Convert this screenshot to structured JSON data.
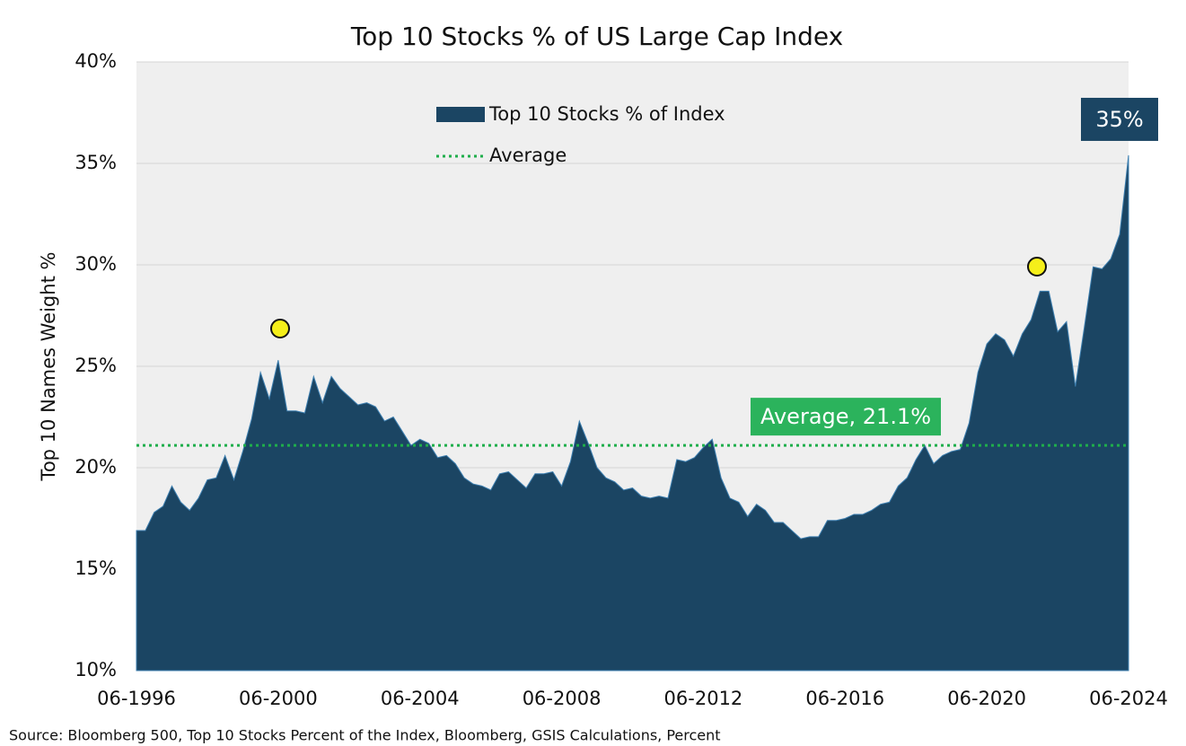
{
  "chart_data": {
    "type": "area",
    "title": "Top 10 Stocks % of US Large Cap Index",
    "ylabel": "Top 10 Names Weight %",
    "source": "Source: Bloomberg 500, Top 10 Stocks Percent of the Index, Bloomberg, GSIS Calculations, Percent",
    "categories": [
      "06-1996",
      null,
      null,
      null,
      null,
      null,
      null,
      null,
      null,
      null,
      null,
      null,
      null,
      null,
      null,
      null,
      "06-2000",
      null,
      null,
      null,
      null,
      null,
      null,
      null,
      null,
      null,
      null,
      null,
      null,
      null,
      null,
      null,
      "06-2004",
      null,
      null,
      null,
      null,
      null,
      null,
      null,
      null,
      null,
      null,
      null,
      null,
      null,
      null,
      null,
      "06-2008",
      null,
      null,
      null,
      null,
      null,
      null,
      null,
      null,
      null,
      null,
      null,
      null,
      null,
      null,
      null,
      "06-2012",
      null,
      null,
      null,
      null,
      null,
      null,
      null,
      null,
      null,
      null,
      null,
      null,
      null,
      null,
      null,
      "06-2016",
      null,
      null,
      null,
      null,
      null,
      null,
      null,
      null,
      null,
      null,
      null,
      null,
      null,
      null,
      null,
      "06-2020",
      null,
      null,
      null,
      null,
      null,
      null,
      null,
      null,
      null,
      null,
      null,
      null,
      null,
      null,
      null,
      "06-2024"
    ],
    "series": [
      {
        "name": "Top 10 Stocks % of Index",
        "color": "#1b4563",
        "values": [
          16.9,
          16.9,
          17.8,
          18.1,
          19.1,
          18.3,
          17.9,
          18.5,
          19.4,
          19.5,
          20.6,
          19.4,
          20.8,
          22.4,
          24.7,
          23.4,
          25.3,
          22.8,
          22.8,
          22.7,
          24.5,
          23.2,
          24.5,
          23.9,
          23.5,
          23.1,
          23.2,
          23.0,
          22.3,
          22.5,
          21.8,
          21.1,
          21.4,
          21.2,
          20.5,
          20.6,
          20.2,
          19.5,
          19.2,
          19.1,
          18.9,
          19.7,
          19.8,
          19.4,
          19.0,
          19.7,
          19.7,
          19.8,
          19.1,
          20.3,
          22.3,
          21.2,
          20.0,
          19.5,
          19.3,
          18.9,
          19.0,
          18.6,
          18.5,
          18.6,
          18.5,
          20.4,
          20.3,
          20.5,
          21.0,
          21.4,
          19.5,
          18.5,
          18.3,
          17.6,
          18.2,
          17.9,
          17.3,
          17.3,
          16.9,
          16.5,
          16.6,
          16.6,
          17.4,
          17.4,
          17.5,
          17.7,
          17.7,
          17.9,
          18.2,
          18.3,
          19.1,
          19.5,
          20.4,
          21.1,
          20.2,
          20.6,
          20.8,
          20.9,
          22.2,
          24.7,
          26.1,
          26.6,
          26.3,
          25.5,
          26.6,
          27.3,
          28.7,
          28.7,
          26.7,
          27.2,
          24.0,
          26.9,
          29.9,
          29.8,
          30.3,
          31.5,
          35.4
        ],
        "value_labels": [
          null,
          null,
          null,
          null,
          null,
          null,
          null,
          null,
          null,
          null,
          null,
          null,
          null,
          null,
          null,
          null,
          null,
          null,
          null,
          null,
          null,
          null,
          null,
          null,
          null,
          null,
          null,
          null,
          null,
          null,
          null,
          null,
          null,
          null,
          null,
          null,
          null,
          null,
          null,
          null,
          null,
          null,
          null,
          null,
          null,
          null,
          null,
          null,
          null,
          null,
          null,
          null,
          null,
          null,
          null,
          null,
          null,
          null,
          null,
          null,
          null,
          null,
          null,
          null,
          null,
          null,
          null,
          null,
          null,
          null,
          null,
          null,
          null,
          null,
          null,
          null,
          null,
          null,
          null,
          null,
          null,
          null,
          null,
          null,
          null,
          null,
          null,
          null,
          null,
          null,
          null,
          null,
          null,
          null,
          null,
          null,
          null,
          null,
          null,
          null,
          null,
          null,
          null,
          null,
          null,
          null,
          null,
          null,
          null,
          null,
          null,
          null,
          "35%"
        ]
      }
    ],
    "reference_line": {
      "name": "Average",
      "color": "#1fae4b",
      "value": 21.1,
      "label": "Average, 21.1%"
    },
    "ylim": [
      10,
      40
    ],
    "yticks": [
      {
        "value": 10,
        "label": "10%"
      },
      {
        "value": 15,
        "label": "15%"
      },
      {
        "value": 20,
        "label": "20%"
      },
      {
        "value": 25,
        "label": "25%"
      },
      {
        "value": 30,
        "label": "30%"
      },
      {
        "value": 35,
        "label": "35%"
      },
      {
        "value": 40,
        "label": "40%"
      }
    ],
    "grid": true
  }
}
